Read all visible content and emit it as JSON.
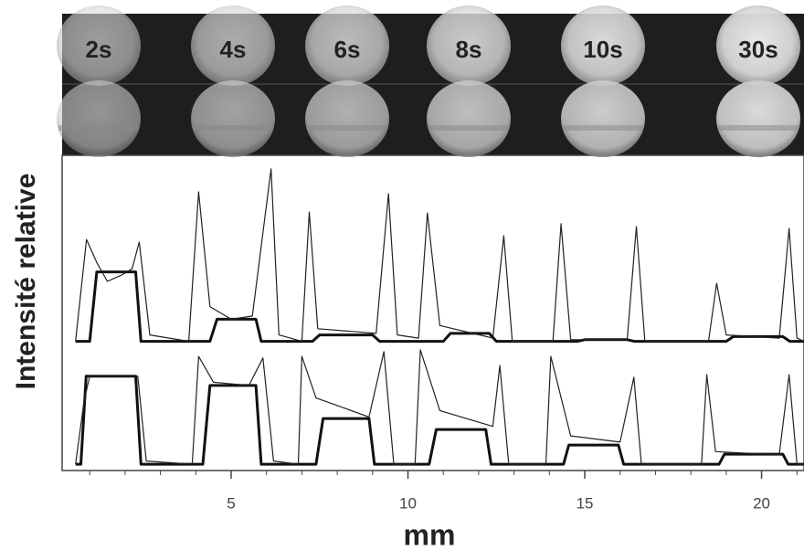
{
  "chart_data": {
    "type": "line",
    "panels": [
      "2s",
      "4s",
      "6s",
      "8s",
      "10s",
      "30s"
    ],
    "xlabel": "mm",
    "ylabel": "Intensité relative",
    "xlim": [
      0.22,
      21.2
    ],
    "xticks": [
      5,
      10,
      15,
      20
    ],
    "ylim": [
      0,
      10
    ],
    "series": [
      {
        "color": "#111111",
        "linewidth": 3,
        "x": [
          0.6,
          1.0,
          1.2,
          2.3,
          2.45,
          4.4,
          4.6,
          5.7,
          5.85,
          7.3,
          7.5,
          9.0,
          9.2,
          11.0,
          11.2,
          12.3,
          12.5,
          14.8,
          15.0,
          16.2,
          16.4,
          19.0,
          19.2,
          20.6,
          20.8,
          21.2
        ],
        "values": [
          4.1,
          4.1,
          6.3,
          6.3,
          4.1,
          4.1,
          4.8,
          4.8,
          4.1,
          4.1,
          4.3,
          4.3,
          4.1,
          4.1,
          4.35,
          4.35,
          4.1,
          4.1,
          4.15,
          4.15,
          4.1,
          4.1,
          4.25,
          4.25,
          4.1,
          4.1
        ]
      },
      {
        "color": "#222222",
        "linewidth": 1.2,
        "x": [
          0.6,
          0.91,
          1.2,
          1.5,
          1.9,
          2.2,
          2.4,
          2.7,
          3.8,
          4.08,
          4.4,
          5.0,
          5.6,
          6.13,
          6.35,
          7.0,
          7.21,
          7.45,
          9.1,
          9.45,
          9.7,
          10.3,
          10.55,
          10.9,
          12.4,
          12.71,
          12.95,
          14.1,
          14.33,
          14.6,
          16.2,
          16.46,
          16.7,
          18.5,
          18.73,
          19.0,
          20.5,
          20.78,
          21.0,
          21.2
        ],
        "values": [
          4.1,
          7.33,
          6.6,
          6.0,
          6.2,
          6.4,
          7.25,
          4.3,
          4.1,
          8.84,
          5.2,
          4.8,
          4.9,
          9.57,
          4.3,
          4.1,
          8.2,
          4.5,
          4.35,
          8.78,
          4.3,
          4.2,
          8.17,
          4.6,
          4.2,
          7.45,
          4.1,
          4.1,
          7.83,
          4.15,
          4.15,
          7.74,
          4.1,
          4.1,
          5.94,
          4.3,
          4.2,
          7.68,
          4.2,
          4.1
        ]
      },
      {
        "color": "#111111",
        "linewidth": 3,
        "x": [
          0.6,
          0.75,
          0.9,
          2.3,
          2.45,
          4.2,
          4.4,
          5.7,
          5.85,
          7.4,
          7.6,
          8.9,
          9.05,
          10.6,
          10.8,
          12.2,
          12.35,
          14.4,
          14.55,
          15.95,
          16.1,
          18.8,
          18.95,
          20.6,
          20.75,
          21.2
        ],
        "values": [
          0.2,
          0.2,
          2.99,
          2.99,
          0.2,
          0.2,
          2.7,
          2.7,
          0.2,
          0.2,
          1.65,
          1.65,
          0.2,
          0.2,
          1.3,
          1.3,
          0.2,
          0.2,
          0.81,
          0.81,
          0.2,
          0.2,
          0.52,
          0.52,
          0.2,
          0.2
        ]
      },
      {
        "color": "#222222",
        "linewidth": 1.2,
        "x": [
          0.6,
          0.84,
          1.0,
          2.2,
          2.36,
          2.6,
          3.9,
          4.08,
          4.5,
          5.5,
          5.9,
          6.2,
          6.9,
          7.0,
          7.4,
          8.9,
          9.32,
          9.6,
          10.2,
          10.35,
          10.9,
          12.4,
          12.6,
          12.85,
          13.9,
          14.04,
          14.6,
          16.0,
          16.39,
          16.6,
          18.3,
          18.45,
          18.7,
          20.5,
          20.78,
          21.0,
          21.2
        ],
        "values": [
          0.2,
          2.2,
          3.0,
          3.0,
          2.99,
          0.3,
          0.2,
          3.62,
          2.8,
          2.7,
          3.57,
          0.3,
          0.2,
          3.62,
          2.3,
          1.7,
          3.77,
          0.2,
          0.2,
          3.83,
          1.9,
          1.4,
          3.33,
          0.2,
          0.2,
          3.62,
          1.1,
          0.9,
          2.96,
          0.2,
          0.2,
          3.04,
          0.6,
          0.5,
          3.04,
          0.2,
          0.2
        ]
      }
    ]
  }
}
